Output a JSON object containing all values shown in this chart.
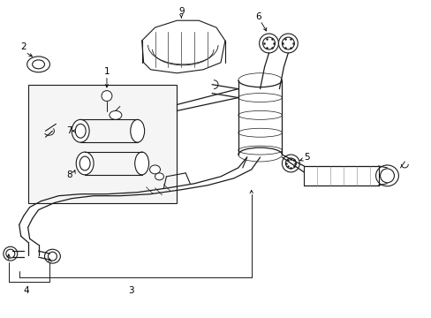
{
  "bg": "#ffffff",
  "lc": "#1a1a1a",
  "lw_main": 0.9,
  "fs": 7.5,
  "fig_w": 4.89,
  "fig_h": 3.6,
  "dpi": 100
}
